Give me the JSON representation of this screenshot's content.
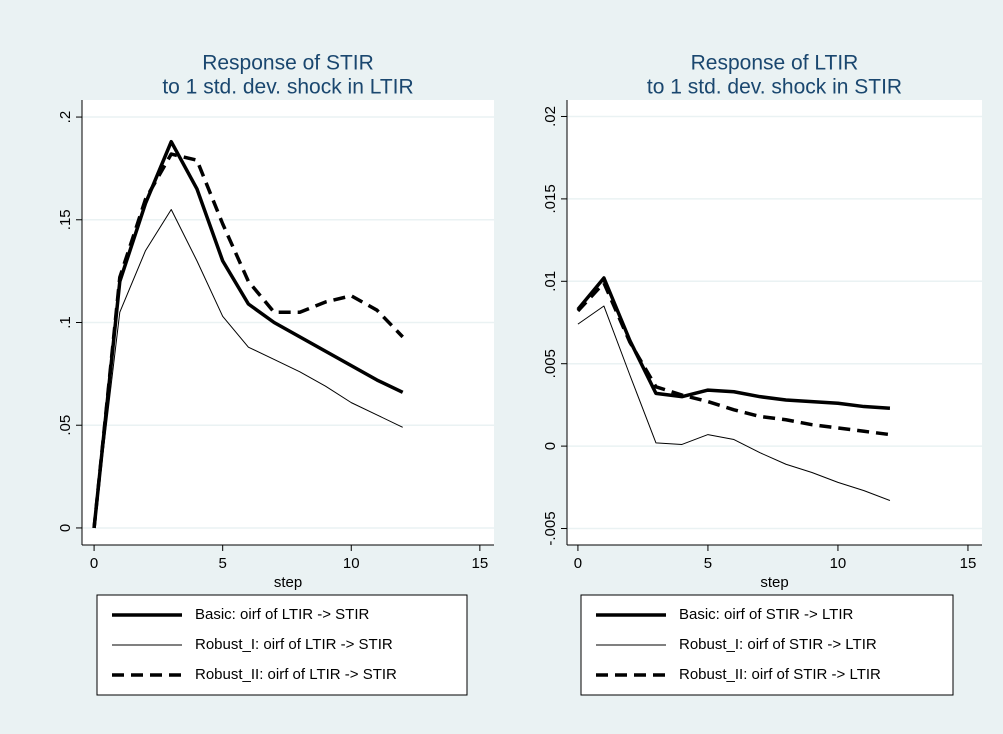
{
  "chart_data": [
    {
      "type": "line",
      "title": "Response of STIR",
      "subtitle": "to 1 std. dev. shock in LTIR",
      "xlabel": "step",
      "x": [
        0,
        1,
        2,
        3,
        4,
        5,
        6,
        7,
        8,
        9,
        10,
        11,
        12
      ],
      "series": [
        {
          "name": "Basic: oirf of LTIR -> STIR",
          "color": "#000000",
          "width": 3.5,
          "dash": false,
          "values": [
            0,
            0.12,
            0.158,
            0.188,
            0.165,
            0.13,
            0.109,
            0.1,
            0.093,
            0.086,
            0.079,
            0.072,
            0.066
          ]
        },
        {
          "name": "Robust_I: oirf of LTIR -> STIR",
          "color": "#000000",
          "width": 1,
          "dash": false,
          "values": [
            0,
            0.105,
            0.135,
            0.155,
            0.13,
            0.103,
            0.088,
            0.082,
            0.076,
            0.069,
            0.061,
            0.055,
            0.049
          ]
        },
        {
          "name": "Robust_II: oirf of LTIR -> STIR",
          "color": "#000000",
          "width": 3.5,
          "dash": true,
          "values": [
            0,
            0.122,
            0.16,
            0.182,
            0.179,
            0.148,
            0.12,
            0.105,
            0.105,
            0.11,
            0.113,
            0.106,
            0.093
          ]
        }
      ],
      "xlim": [
        -0.47,
        15.55
      ],
      "xticks": [
        0,
        5,
        10,
        15
      ],
      "ylim": [
        -0.0083,
        0.2083
      ],
      "yticks": [
        0,
        {
          "value": 0.05,
          "label": ".05"
        },
        {
          "value": 0.1,
          "label": ".1"
        },
        {
          "value": 0.15,
          "label": ".15"
        },
        {
          "value": 0.2,
          "label": ".2"
        }
      ],
      "grid": true
    },
    {
      "type": "line",
      "title": "Response of LTIR",
      "subtitle": "to 1 std. dev. shock in STIR",
      "xlabel": "step",
      "x": [
        0,
        1,
        2,
        3,
        4,
        5,
        6,
        7,
        8,
        9,
        10,
        11,
        12
      ],
      "series": [
        {
          "name": "Basic: oirf of STIR -> LTIR",
          "color": "#000000",
          "width": 3.5,
          "dash": false,
          "values": [
            0.0083,
            0.0102,
            0.0064,
            0.0032,
            0.003,
            0.0034,
            0.0033,
            0.003,
            0.0028,
            0.0027,
            0.0026,
            0.0024,
            0.0023
          ]
        },
        {
          "name": "Robust_I: oirf of STIR -> LTIR",
          "color": "#000000",
          "width": 1,
          "dash": false,
          "values": [
            0.0074,
            0.0085,
            0.0043,
            0.0002,
            0.0001,
            0.0007,
            0.0004,
            -0.0004,
            -0.0011,
            -0.0016,
            -0.0022,
            -0.0027,
            -0.0033
          ]
        },
        {
          "name": "Robust_II: oirf of STIR -> LTIR",
          "color": "#000000",
          "width": 3.5,
          "dash": true,
          "values": [
            0.0082,
            0.0099,
            0.0063,
            0.0036,
            0.0031,
            0.0027,
            0.0022,
            0.0018,
            0.0016,
            0.0013,
            0.0011,
            0.0009,
            0.0007
          ]
        }
      ],
      "xlim": [
        -0.42,
        15.54
      ],
      "xticks": [
        0,
        5,
        10,
        15
      ],
      "ylim": [
        -0.006,
        0.021
      ],
      "yticks": [
        {
          "value": -0.005,
          "label": "-.005"
        },
        0,
        {
          "value": 0.005,
          "label": ".005"
        },
        {
          "value": 0.01,
          "label": ".01"
        },
        {
          "value": 0.015,
          "label": ".015"
        },
        {
          "value": 0.02,
          "label": ".02"
        }
      ],
      "grid": true
    }
  ]
}
